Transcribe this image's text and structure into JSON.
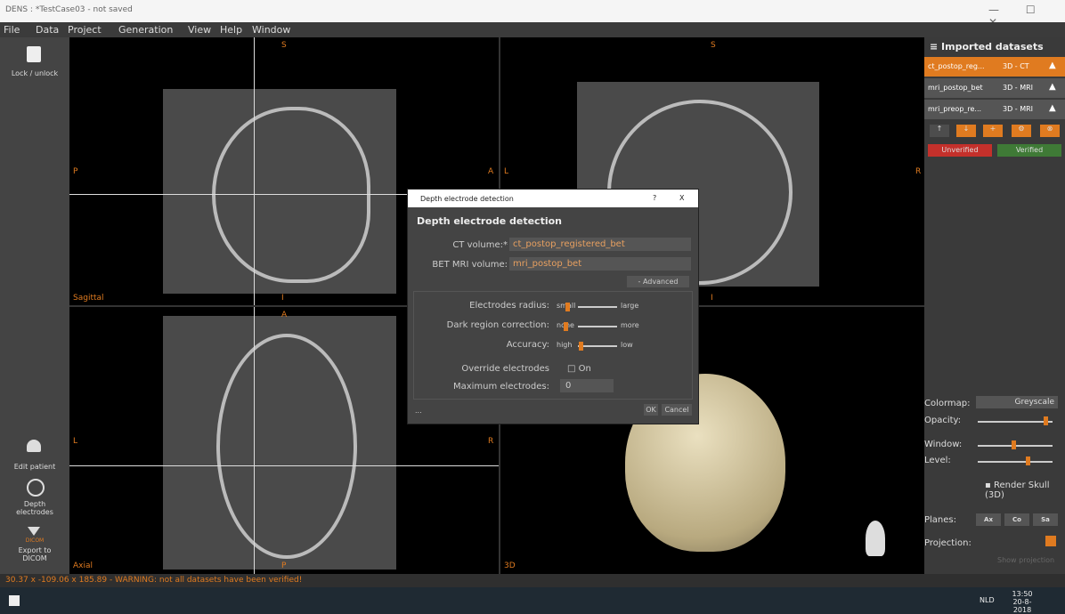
{
  "window": {
    "title": "DENS : *TestCase03 - not saved"
  },
  "menu": [
    "File",
    "Data",
    "Project",
    "Generation",
    "View",
    "Help",
    "Window"
  ],
  "toolbar": {
    "lock": "Lock / unlock",
    "edit_patient": "Edit patient",
    "depth": "Depth electrodes",
    "dicom_icon": "DICOM",
    "export": "Export to DICOM"
  },
  "views": [
    {
      "name": "Sagittal",
      "top": "S",
      "left": "P",
      "right": "A",
      "bottom": "I"
    },
    {
      "top": "S",
      "left": "L",
      "right": "R",
      "bottom": "I"
    },
    {
      "name": "Axial",
      "top": "A",
      "left": "L",
      "right": "R",
      "bottom": "P"
    },
    {
      "name": "3D"
    }
  ],
  "datasets": {
    "title": "Imported datasets",
    "items": [
      {
        "name": "ct_postop_reg...",
        "type": "3D - CT"
      },
      {
        "name": "mri_postop_bet",
        "type": "3D - MRI"
      },
      {
        "name": "mri_preop_re...",
        "type": "3D - MRI"
      }
    ],
    "unverified": "Unverified",
    "verified": "Verified"
  },
  "controls": {
    "colormap": "Colormap:",
    "colormap_value": "Greyscale",
    "opacity": "Opacity:",
    "window": "Window:",
    "level": "Level:",
    "render_skull": "Render Skull (3D)",
    "planes": "Planes:",
    "plane_buttons": [
      "Ax",
      "Co",
      "Sa"
    ],
    "projection": "Projection:",
    "show_projection": "Show projection"
  },
  "dialog": {
    "window_title": "Depth electrode detection",
    "help": "?",
    "close": "X",
    "heading": "Depth electrode detection",
    "ct_label": "CT volume:*",
    "ct_value": "ct_postop_registered_bet",
    "mri_label": "BET MRI volume:",
    "mri_value": "mri_postop_bet",
    "advanced": "- Advanced",
    "rows": [
      {
        "label": "Electrodes radius:",
        "min": "small",
        "max": "large"
      },
      {
        "label": "Dark region correction:",
        "min": "none",
        "max": "more"
      },
      {
        "label": "Accuracy:",
        "min": "high",
        "max": "low"
      }
    ],
    "override_label": "Override electrodes",
    "override_option": "On",
    "max_label": "Maximum electrodes:",
    "max_value": "0",
    "more": "...",
    "ok": "OK",
    "cancel": "Cancel"
  },
  "status": "30.37 x -109.06 x 185.89 - WARNING: not all datasets have been verified!",
  "taskbar": {
    "lang": "NLD",
    "time": "13:50",
    "date": "20-8-2018"
  }
}
